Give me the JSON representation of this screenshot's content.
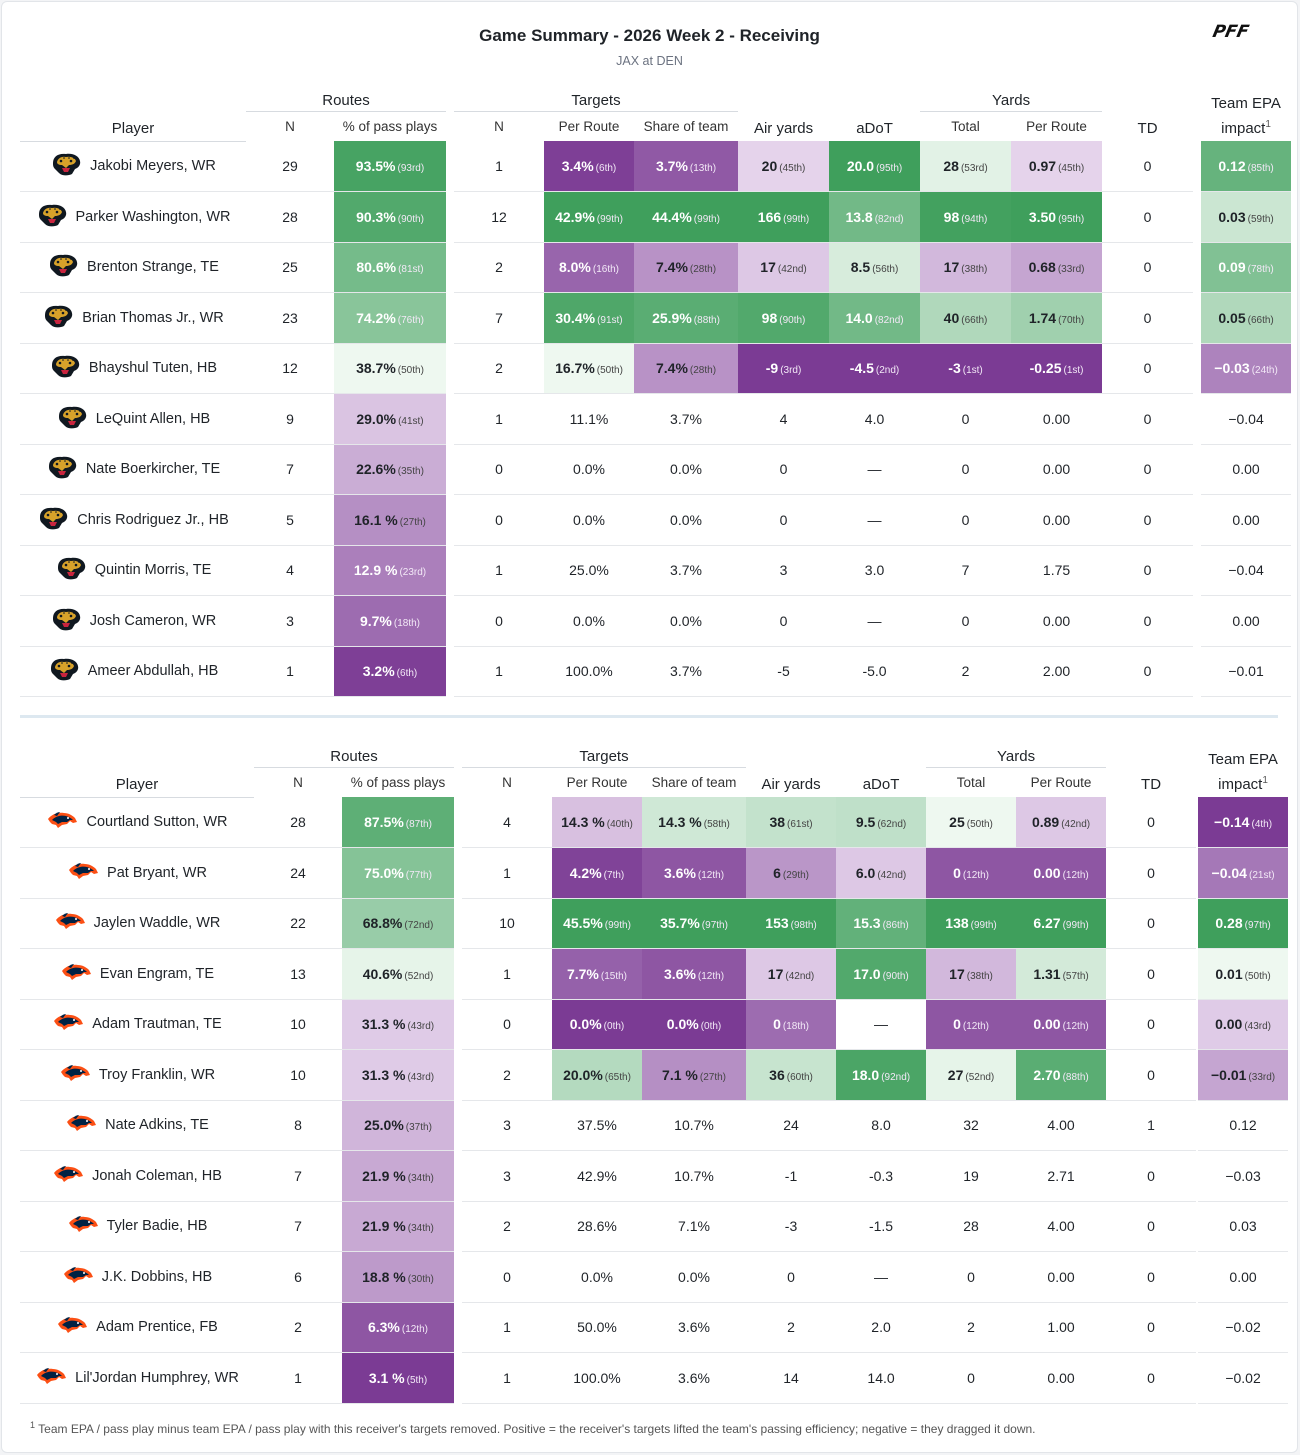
{
  "header": {
    "title": "Game Summary - 2026 Week 2 - Receiving",
    "subtitle": "JAX at DEN",
    "brand": "PFF"
  },
  "columns": {
    "player": "Player",
    "routes": "Routes",
    "routes_n": "N",
    "routes_pct": "% of pass plays",
    "targets": "Targets",
    "targets_n": "N",
    "per_route": "Per Route",
    "share": "Share of team",
    "air_yards": "Air yards",
    "adot": "aDoT",
    "yards": "Yards",
    "total": "Total",
    "yards_per_route": "Per Route",
    "td": "TD",
    "epa_line1": "Team EPA",
    "epa_line2": "impact",
    "epa_sup": "1"
  },
  "colors": {
    "green_strong": "#43a961",
    "purple_strong": "#7b3b94",
    "neutral": "#ffffff"
  },
  "teams": [
    {
      "team": "JAX",
      "logo_icon": "jaguar-head-icon",
      "rows": [
        {
          "player": "Jakobi Meyers, WR",
          "rn": "29",
          "rpct": "93.5%",
          "rpct_p": "(93rd)",
          "tn": "1",
          "tpr": "3.4%",
          "tpr_p": "(6th)",
          "ts": "3.7%",
          "ts_p": "(13th)",
          "ay": "20",
          "ay_p": "(45th)",
          "adot": "20.0",
          "adot_p": "(95th)",
          "yt": "28",
          "yt_p": "(53rd)",
          "ypr": "0.97",
          "ypr_p": "(45th)",
          "td": "0",
          "epa": "0.12",
          "epa_p": "(85th)"
        },
        {
          "player": "Parker Washington, WR",
          "rn": "28",
          "rpct": "90.3%",
          "rpct_p": "(90th)",
          "tn": "12",
          "tpr": "42.9%",
          "tpr_p": "(99th)",
          "ts": "44.4%",
          "ts_p": "(99th)",
          "ay": "166",
          "ay_p": "(99th)",
          "adot": "13.8",
          "adot_p": "(82nd)",
          "yt": "98",
          "yt_p": "(94th)",
          "ypr": "3.50",
          "ypr_p": "(95th)",
          "td": "0",
          "epa": "0.03",
          "epa_p": "(59th)"
        },
        {
          "player": "Brenton Strange, TE",
          "rn": "25",
          "rpct": "80.6%",
          "rpct_p": "(81st)",
          "tn": "2",
          "tpr": "8.0%",
          "tpr_p": "(16th)",
          "ts": "7.4%",
          "ts_p": "(28th)",
          "ay": "17",
          "ay_p": "(42nd)",
          "adot": "8.5",
          "adot_p": "(56th)",
          "yt": "17",
          "yt_p": "(38th)",
          "ypr": "0.68",
          "ypr_p": "(33rd)",
          "td": "0",
          "epa": "0.09",
          "epa_p": "(78th)"
        },
        {
          "player": "Brian Thomas Jr., WR",
          "rn": "23",
          "rpct": "74.2%",
          "rpct_p": "(76th)",
          "tn": "7",
          "tpr": "30.4%",
          "tpr_p": "(91st)",
          "ts": "25.9%",
          "ts_p": "(88th)",
          "ay": "98",
          "ay_p": "(90th)",
          "adot": "14.0",
          "adot_p": "(82nd)",
          "yt": "40",
          "yt_p": "(66th)",
          "ypr": "1.74",
          "ypr_p": "(70th)",
          "td": "0",
          "epa": "0.05",
          "epa_p": "(66th)"
        },
        {
          "player": "Bhayshul Tuten, HB",
          "rn": "12",
          "rpct": "38.7%",
          "rpct_p": "(50th)",
          "tn": "2",
          "tpr": "16.7%",
          "tpr_p": "(50th)",
          "ts": "7.4%",
          "ts_p": "(28th)",
          "ay": "-9",
          "ay_p": "(3rd)",
          "adot": "-4.5",
          "adot_p": "(2nd)",
          "yt": "-3",
          "yt_p": "(1st)",
          "ypr": "-0.25",
          "ypr_p": "(1st)",
          "td": "0",
          "epa": "−0.03",
          "epa_p": "(24th)"
        },
        {
          "player": "LeQuint Allen, HB",
          "rn": "9",
          "rpct": "29.0%",
          "rpct_p": "(41st)",
          "tn": "1",
          "tpr": "11.1%",
          "tpr_p": "",
          "ts": "3.7%",
          "ts_p": "",
          "ay": "4",
          "ay_p": "",
          "adot": "4.0",
          "adot_p": "",
          "yt": "0",
          "yt_p": "",
          "ypr": "0.00",
          "ypr_p": "",
          "td": "0",
          "epa": "−0.04",
          "epa_p": ""
        },
        {
          "player": "Nate Boerkircher, TE",
          "rn": "7",
          "rpct": "22.6%",
          "rpct_p": "(35th)",
          "tn": "0",
          "tpr": "0.0%",
          "tpr_p": "",
          "ts": "0.0%",
          "ts_p": "",
          "ay": "0",
          "ay_p": "",
          "adot": "—",
          "adot_p": "",
          "yt": "0",
          "yt_p": "",
          "ypr": "0.00",
          "ypr_p": "",
          "td": "0",
          "epa": "0.00",
          "epa_p": ""
        },
        {
          "player": "Chris Rodriguez Jr., HB",
          "rn": "5",
          "rpct": "16.1 %",
          "rpct_p": "(27th)",
          "tn": "0",
          "tpr": "0.0%",
          "tpr_p": "",
          "ts": "0.0%",
          "ts_p": "",
          "ay": "0",
          "ay_p": "",
          "adot": "—",
          "adot_p": "",
          "yt": "0",
          "yt_p": "",
          "ypr": "0.00",
          "ypr_p": "",
          "td": "0",
          "epa": "0.00",
          "epa_p": ""
        },
        {
          "player": "Quintin Morris, TE",
          "rn": "4",
          "rpct": "12.9 %",
          "rpct_p": "(23rd)",
          "tn": "1",
          "tpr": "25.0%",
          "tpr_p": "",
          "ts": "3.7%",
          "ts_p": "",
          "ay": "3",
          "ay_p": "",
          "adot": "3.0",
          "adot_p": "",
          "yt": "7",
          "yt_p": "",
          "ypr": "1.75",
          "ypr_p": "",
          "td": "0",
          "epa": "−0.04",
          "epa_p": ""
        },
        {
          "player": "Josh Cameron, WR",
          "rn": "3",
          "rpct": "9.7%",
          "rpct_p": "(18th)",
          "tn": "0",
          "tpr": "0.0%",
          "tpr_p": "",
          "ts": "0.0%",
          "ts_p": "",
          "ay": "0",
          "ay_p": "",
          "adot": "—",
          "adot_p": "",
          "yt": "0",
          "yt_p": "",
          "ypr": "0.00",
          "ypr_p": "",
          "td": "0",
          "epa": "0.00",
          "epa_p": ""
        },
        {
          "player": "Ameer Abdullah, HB",
          "rn": "1",
          "rpct": "3.2%",
          "rpct_p": "(6th)",
          "tn": "1",
          "tpr": "100.0%",
          "tpr_p": "",
          "ts": "3.7%",
          "ts_p": "",
          "ay": "-5",
          "ay_p": "",
          "adot": "-5.0",
          "adot_p": "",
          "yt": "2",
          "yt_p": "",
          "ypr": "2.00",
          "ypr_p": "",
          "td": "0",
          "epa": "−0.01",
          "epa_p": ""
        }
      ]
    },
    {
      "team": "DEN",
      "logo_icon": "bronco-head-icon",
      "rows": [
        {
          "player": "Courtland Sutton, WR",
          "rn": "28",
          "rpct": "87.5%",
          "rpct_p": "(87th)",
          "tn": "4",
          "tpr": "14.3 %",
          "tpr_p": "(40th)",
          "ts": "14.3 %",
          "ts_p": "(58th)",
          "ay": "38",
          "ay_p": "(61st)",
          "adot": "9.5",
          "adot_p": "(62nd)",
          "yt": "25",
          "yt_p": "(50th)",
          "ypr": "0.89",
          "ypr_p": "(42nd)",
          "td": "0",
          "epa": "−0.14",
          "epa_p": "(4th)"
        },
        {
          "player": "Pat Bryant, WR",
          "rn": "24",
          "rpct": "75.0%",
          "rpct_p": "(77th)",
          "tn": "1",
          "tpr": "4.2%",
          "tpr_p": "(7th)",
          "ts": "3.6%",
          "ts_p": "(12th)",
          "ay": "6",
          "ay_p": "(29th)",
          "adot": "6.0",
          "adot_p": "(42nd)",
          "yt": "0",
          "yt_p": "(12th)",
          "ypr": "0.00",
          "ypr_p": "(12th)",
          "td": "0",
          "epa": "−0.04",
          "epa_p": "(21st)"
        },
        {
          "player": "Jaylen Waddle, WR",
          "rn": "22",
          "rpct": "68.8%",
          "rpct_p": "(72nd)",
          "tn": "10",
          "tpr": "45.5%",
          "tpr_p": "(99th)",
          "ts": "35.7%",
          "ts_p": "(97th)",
          "ay": "153",
          "ay_p": "(98th)",
          "adot": "15.3",
          "adot_p": "(86th)",
          "yt": "138",
          "yt_p": "(99th)",
          "ypr": "6.27",
          "ypr_p": "(99th)",
          "td": "0",
          "epa": "0.28",
          "epa_p": "(97th)"
        },
        {
          "player": "Evan Engram, TE",
          "rn": "13",
          "rpct": "40.6%",
          "rpct_p": "(52nd)",
          "tn": "1",
          "tpr": "7.7%",
          "tpr_p": "(15th)",
          "ts": "3.6%",
          "ts_p": "(12th)",
          "ay": "17",
          "ay_p": "(42nd)",
          "adot": "17.0",
          "adot_p": "(90th)",
          "yt": "17",
          "yt_p": "(38th)",
          "ypr": "1.31",
          "ypr_p": "(57th)",
          "td": "0",
          "epa": "0.01",
          "epa_p": "(50th)"
        },
        {
          "player": "Adam Trautman, TE",
          "rn": "10",
          "rpct": "31.3 %",
          "rpct_p": "(43rd)",
          "tn": "0",
          "tpr": "0.0%",
          "tpr_p": "(0th)",
          "ts": "0.0%",
          "ts_p": "(0th)",
          "ay": "0",
          "ay_p": "(18th)",
          "adot": "—",
          "adot_p": "",
          "yt": "0",
          "yt_p": "(12th)",
          "ypr": "0.00",
          "ypr_p": "(12th)",
          "td": "0",
          "epa": "0.00",
          "epa_p": "(43rd)"
        },
        {
          "player": "Troy Franklin, WR",
          "rn": "10",
          "rpct": "31.3 %",
          "rpct_p": "(43rd)",
          "tn": "2",
          "tpr": "20.0%",
          "tpr_p": "(65th)",
          "ts": "7.1 %",
          "ts_p": "(27th)",
          "ay": "36",
          "ay_p": "(60th)",
          "adot": "18.0",
          "adot_p": "(92nd)",
          "yt": "27",
          "yt_p": "(52nd)",
          "ypr": "2.70",
          "ypr_p": "(88th)",
          "td": "0",
          "epa": "−0.01",
          "epa_p": "(33rd)"
        },
        {
          "player": "Nate Adkins, TE",
          "rn": "8",
          "rpct": "25.0%",
          "rpct_p": "(37th)",
          "tn": "3",
          "tpr": "37.5%",
          "tpr_p": "",
          "ts": "10.7%",
          "ts_p": "",
          "ay": "24",
          "ay_p": "",
          "adot": "8.0",
          "adot_p": "",
          "yt": "32",
          "yt_p": "",
          "ypr": "4.00",
          "ypr_p": "",
          "td": "1",
          "epa": "0.12",
          "epa_p": ""
        },
        {
          "player": "Jonah Coleman, HB",
          "rn": "7",
          "rpct": "21.9 %",
          "rpct_p": "(34th)",
          "tn": "3",
          "tpr": "42.9%",
          "tpr_p": "",
          "ts": "10.7%",
          "ts_p": "",
          "ay": "-1",
          "ay_p": "",
          "adot": "-0.3",
          "adot_p": "",
          "yt": "19",
          "yt_p": "",
          "ypr": "2.71",
          "ypr_p": "",
          "td": "0",
          "epa": "−0.03",
          "epa_p": ""
        },
        {
          "player": "Tyler Badie, HB",
          "rn": "7",
          "rpct": "21.9 %",
          "rpct_p": "(34th)",
          "tn": "2",
          "tpr": "28.6%",
          "tpr_p": "",
          "ts": "7.1%",
          "ts_p": "",
          "ay": "-3",
          "ay_p": "",
          "adot": "-1.5",
          "adot_p": "",
          "yt": "28",
          "yt_p": "",
          "ypr": "4.00",
          "ypr_p": "",
          "td": "0",
          "epa": "0.03",
          "epa_p": ""
        },
        {
          "player": "J.K. Dobbins, HB",
          "rn": "6",
          "rpct": "18.8 %",
          "rpct_p": "(30th)",
          "tn": "0",
          "tpr": "0.0%",
          "tpr_p": "",
          "ts": "0.0%",
          "ts_p": "",
          "ay": "0",
          "ay_p": "",
          "adot": "—",
          "adot_p": "",
          "yt": "0",
          "yt_p": "",
          "ypr": "0.00",
          "ypr_p": "",
          "td": "0",
          "epa": "0.00",
          "epa_p": ""
        },
        {
          "player": "Adam Prentice, FB",
          "rn": "2",
          "rpct": "6.3%",
          "rpct_p": "(12th)",
          "tn": "1",
          "tpr": "50.0%",
          "tpr_p": "",
          "ts": "3.6%",
          "ts_p": "",
          "ay": "2",
          "ay_p": "",
          "adot": "2.0",
          "adot_p": "",
          "yt": "2",
          "yt_p": "",
          "ypr": "1.00",
          "ypr_p": "",
          "td": "0",
          "epa": "−0.02",
          "epa_p": ""
        },
        {
          "player": "Lil'Jordan Humphrey, WR",
          "rn": "1",
          "rpct": "3.1 %",
          "rpct_p": "(5th)",
          "tn": "1",
          "tpr": "100.0%",
          "tpr_p": "",
          "ts": "3.6%",
          "ts_p": "",
          "ay": "14",
          "ay_p": "",
          "adot": "14.0",
          "adot_p": "",
          "yt": "0",
          "yt_p": "",
          "ypr": "0.00",
          "ypr_p": "",
          "td": "0",
          "epa": "−0.02",
          "epa_p": ""
        }
      ]
    }
  ],
  "footnote": {
    "mark": "1",
    "text": "Team EPA / pass play minus team EPA / pass play with this receiver's targets removed. Positive = the receiver's targets lifted the team's passing efficiency; negative = they dragged it down."
  }
}
